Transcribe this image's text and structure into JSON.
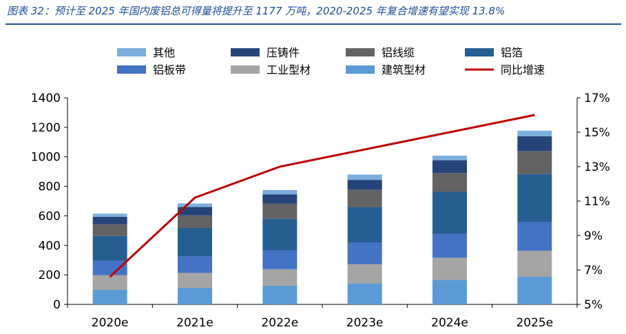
{
  "title": "图表 32：预计至 2025 年国内废铝总可得量将提升至 1177 万吨，2020-2025 年复合增速有望实现 13.8%",
  "chart_data": {
    "type": "bar",
    "stacked": true,
    "categories": [
      "2020e",
      "2021e",
      "2022e",
      "2023e",
      "2024e",
      "2025e"
    ],
    "series": [
      {
        "name": "建筑型材",
        "color": "#5b9bd5",
        "values": [
          98,
          112,
          126,
          142,
          166,
          187
        ]
      },
      {
        "name": "工业型材",
        "color": "#a5a5a5",
        "values": [
          100,
          101,
          113,
          131,
          150,
          177
        ]
      },
      {
        "name": "铝板带",
        "color": "#4472c4",
        "values": [
          97,
          112,
          126,
          147,
          162,
          194
        ]
      },
      {
        "name": "铝箔",
        "color": "#255e91",
        "values": [
          168,
          193,
          215,
          240,
          285,
          325
        ]
      },
      {
        "name": "铝线缆",
        "color": "#636363",
        "values": [
          80,
          85,
          103,
          116,
          127,
          156
        ]
      },
      {
        "name": "压铸件",
        "color": "#264478",
        "values": [
          50,
          57,
          63,
          68,
          87,
          100
        ]
      },
      {
        "name": "其他",
        "color": "#7cafdd",
        "values": [
          22,
          24,
          29,
          36,
          31,
          38
        ]
      }
    ],
    "line_series": {
      "name": "同比增速",
      "color": "#c00000",
      "axis": "right",
      "unit": "%",
      "values": [
        6.6,
        11.2,
        13.0,
        14.0,
        15.0,
        16.0
      ]
    },
    "left_axis": {
      "ylim": [
        0,
        1400
      ],
      "ticks": [
        "0",
        "200",
        "400",
        "600",
        "800",
        "1000",
        "1200",
        "1400"
      ]
    },
    "right_axis": {
      "ylim": [
        5,
        17
      ],
      "ticks": [
        "5%",
        "7%",
        "9%",
        "11%",
        "13%",
        "15%",
        "17%"
      ]
    },
    "legend": {
      "placement": "top",
      "rows": [
        [
          "其他",
          "压铸件",
          "铝线缆",
          "铝箔"
        ],
        [
          "铝板带",
          "工业型材",
          "建筑型材",
          "同比增速"
        ]
      ]
    },
    "grid": false
  }
}
